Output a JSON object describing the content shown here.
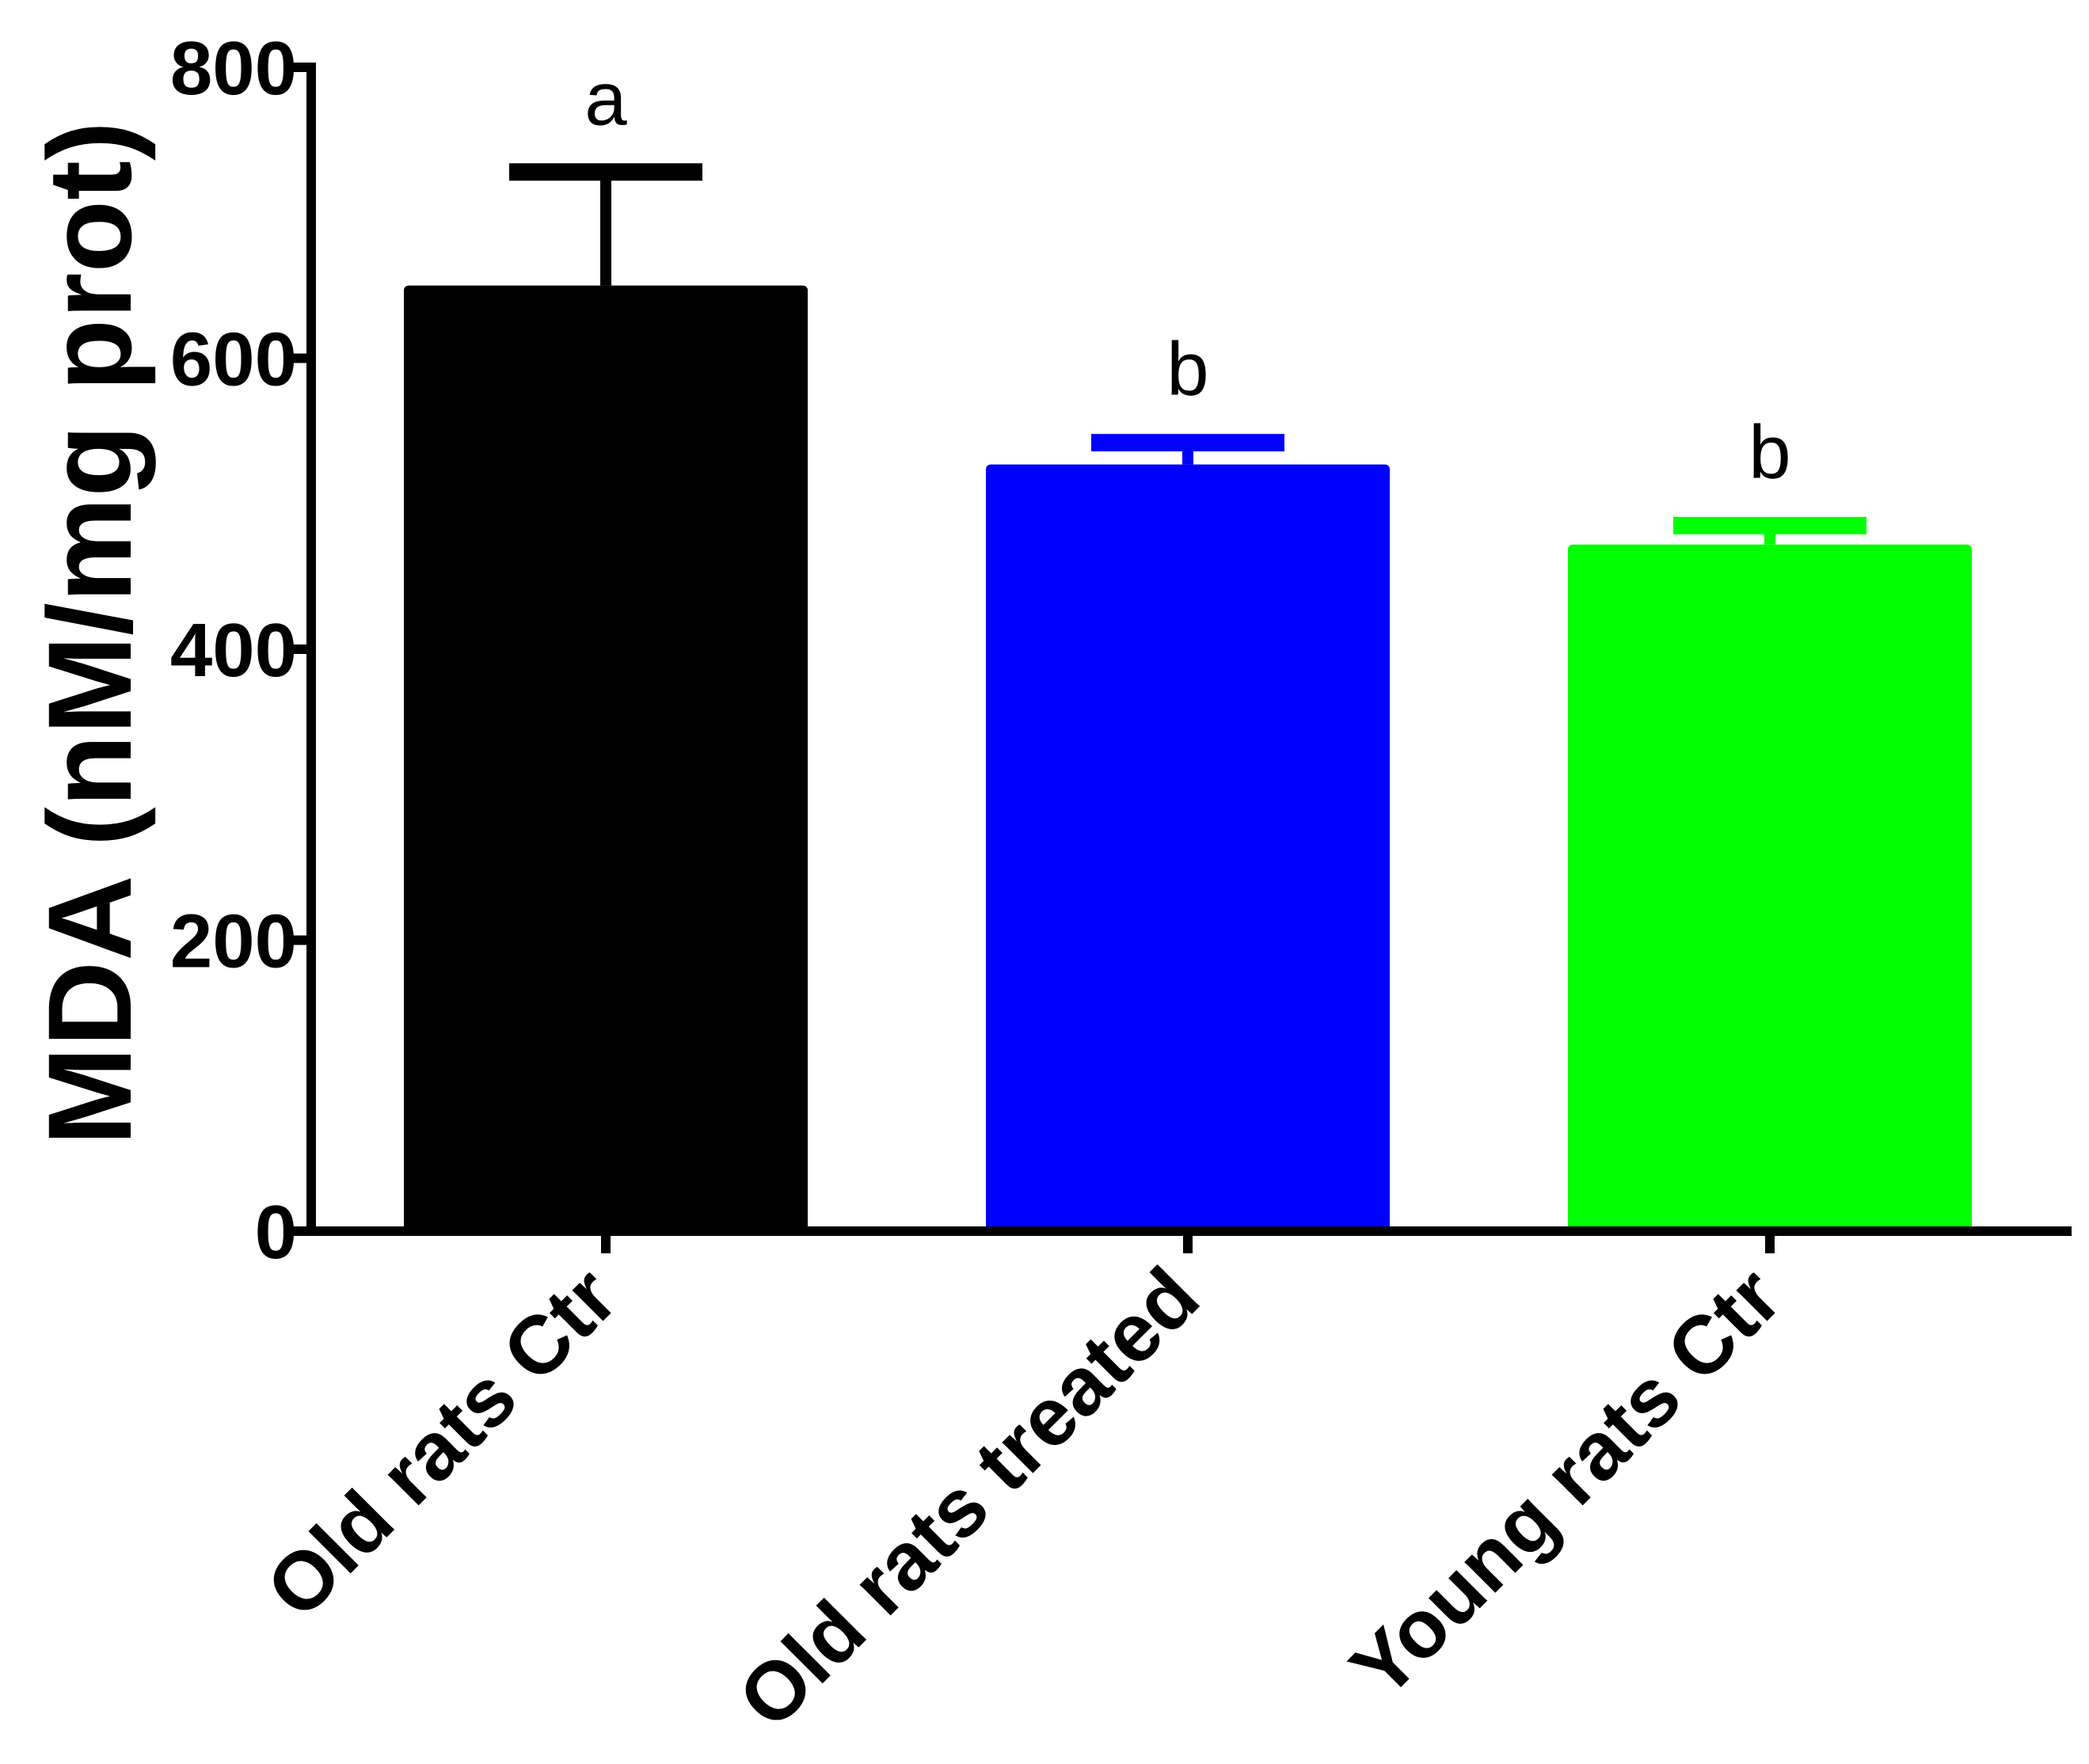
{
  "chart_data": {
    "type": "bar",
    "title": "",
    "xlabel": "",
    "ylabel": "MDA (nM/mg prot)",
    "ylim": [
      0,
      800
    ],
    "yticks": [
      0,
      200,
      400,
      600,
      800
    ],
    "ytick_labels": [
      "0",
      "200",
      "400",
      "600",
      "800"
    ],
    "categories": [
      "Old rats Ctr",
      "Old rats treated",
      "Young rats Ctr"
    ],
    "values": [
      650,
      527,
      472
    ],
    "errors": [
      78,
      15,
      13
    ],
    "significance": [
      "a",
      "b",
      "b"
    ],
    "colors": [
      "#000000",
      "#0000ff",
      "#00ff00"
    ],
    "grid": false
  }
}
